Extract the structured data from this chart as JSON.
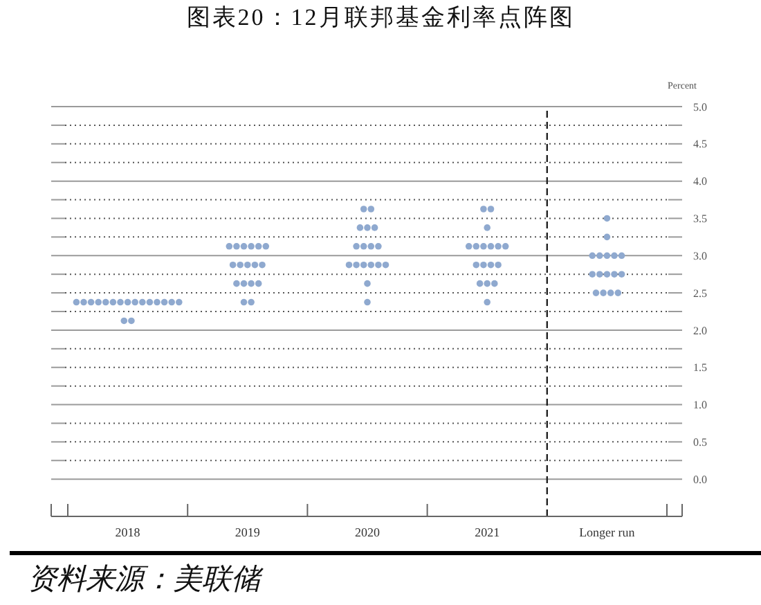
{
  "chart_data": {
    "type": "scatter",
    "title": "图表20：12月联邦基金利率点阵图",
    "ylabel": "Percent",
    "annotations": [
      "资料来源：美联储"
    ],
    "categories": [
      "2018",
      "2019",
      "2020",
      "2021",
      "Longer run"
    ],
    "color": "#8fa9cf",
    "series": [
      {
        "values": [
          2.375,
          3.125,
          3.625,
          3.625,
          3.5
        ]
      },
      {
        "values": [
          2.375,
          3.125,
          3.625,
          3.625,
          3.25
        ]
      },
      {
        "values": [
          2.375,
          3.125,
          3.375,
          3.375,
          3
        ]
      },
      {
        "values": [
          2.375,
          3.125,
          3.375,
          3.125,
          3
        ]
      },
      {
        "values": [
          2.375,
          3.125,
          3.375,
          3.125,
          3
        ]
      },
      {
        "values": [
          2.375,
          3.125,
          3.125,
          3.125,
          3
        ]
      },
      {
        "values": [
          2.375,
          2.875,
          3.125,
          3.125,
          3
        ]
      },
      {
        "values": [
          2.375,
          2.875,
          3.125,
          3.125,
          2.75
        ]
      },
      {
        "values": [
          2.375,
          2.875,
          3.125,
          3.125,
          2.75
        ]
      },
      {
        "values": [
          2.375,
          2.875,
          2.875,
          2.875,
          2.75
        ]
      },
      {
        "values": [
          2.375,
          2.875,
          2.875,
          2.875,
          2.75
        ]
      },
      {
        "values": [
          2.375,
          2.625,
          2.875,
          2.875,
          2.75
        ]
      },
      {
        "values": [
          2.375,
          2.625,
          2.875,
          2.875,
          2.5
        ]
      },
      {
        "values": [
          2.375,
          2.625,
          2.875,
          2.625,
          2.5
        ]
      },
      {
        "values": [
          2.375,
          2.625,
          2.875,
          2.625,
          2.5
        ]
      },
      {
        "values": [
          2.125,
          2.375,
          2.625,
          2.625,
          2.5
        ]
      },
      {
        "values": [
          2.125,
          2.375,
          2.375,
          2.375,
          null
        ]
      }
    ],
    "ylim": [
      -0.5,
      5
    ],
    "yticks": [
      {
        "value": 0,
        "label": "0.0"
      },
      {
        "value": 0.25,
        "label": null
      },
      0.5,
      {
        "value": 0.75,
        "label": null
      },
      {
        "value": 1,
        "label": "1.0"
      },
      {
        "value": 1.25,
        "label": null
      },
      1.5,
      {
        "value": 1.75,
        "label": null
      },
      {
        "value": 2,
        "label": "2.0"
      },
      {
        "value": 2.25,
        "label": null
      },
      2.5,
      {
        "value": 2.75,
        "label": null
      },
      {
        "value": 3,
        "label": "3.0"
      },
      {
        "value": 3.25,
        "label": null
      },
      3.5,
      {
        "value": 3.75,
        "label": null
      },
      {
        "value": 4,
        "label": "4.0"
      },
      {
        "value": 4.25,
        "label": null
      },
      4.5,
      {
        "value": 4.75,
        "label": null
      },
      {
        "value": 5,
        "label": "5.0"
      }
    ],
    "grid": "y",
    "marker": "circle",
    "ref_lines": [
      {
        "axis": "x",
        "value": "Longer run",
        "line_style": "dashed",
        "color": "#222222"
      }
    ]
  }
}
